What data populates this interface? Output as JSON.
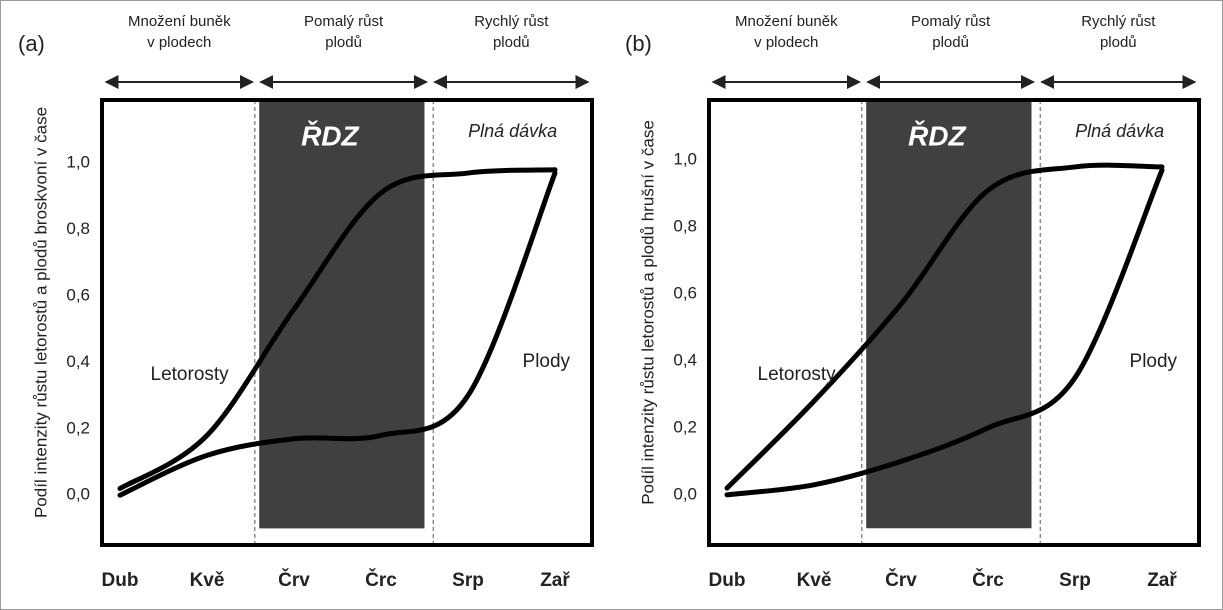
{
  "chart_data": [
    {
      "type": "line",
      "title": "(a)",
      "ylabel": "Podíl intenzity růstu letorostů a plodů broskvoní v čase",
      "categories": [
        "Dub",
        "Kvě",
        "Črv",
        "Črc",
        "Srp",
        "Zař"
      ],
      "phases": [
        [
          "Množení buněk",
          "v plodech"
        ],
        [
          "Pomalý růst",
          "plodů"
        ],
        [
          "Rychlý růst",
          "plodů"
        ]
      ],
      "annotations": [
        "ŘDZ",
        "Plná dávka"
      ],
      "series": [
        {
          "name": "Letorosty",
          "color": "#000000",
          "values": [
            0.02,
            0.18,
            0.56,
            0.91,
            0.97,
            0.98
          ]
        },
        {
          "name": "Plody",
          "color": "#000000",
          "values": [
            0.0,
            0.12,
            0.17,
            0.18,
            0.3,
            0.97
          ]
        }
      ],
      "ylim": [
        -0.15,
        1.19
      ],
      "yticks": [
        {
          "value": 0,
          "label": "0,0"
        },
        {
          "value": 0.2,
          "label": "0,2"
        },
        {
          "value": 0.4,
          "label": "0,4"
        },
        {
          "value": 0.6,
          "label": "0,6"
        },
        {
          "value": 0.8,
          "label": "0,8"
        },
        {
          "value": 1,
          "label": "1,0"
        }
      ]
    },
    {
      "type": "line",
      "title": "(b)",
      "ylabel": "Podíl intenzity růstu letorostů a plodů hrušní v čase",
      "categories": [
        "Dub",
        "Kvě",
        "Črv",
        "Črc",
        "Srp",
        "Zař"
      ],
      "phases": [
        [
          "Množení buněk",
          "v plodech"
        ],
        [
          "Pomalý růst",
          "plodů"
        ],
        [
          "Rychlý růst",
          "plodů"
        ]
      ],
      "annotations": [
        "ŘDZ",
        "Plná dávka"
      ],
      "series": [
        {
          "name": "Letorosty",
          "color": "#000000",
          "values": [
            0.02,
            0.28,
            0.57,
            0.91,
            0.98,
            0.98
          ]
        },
        {
          "name": "Plody",
          "color": "#000000",
          "values": [
            0.0,
            0.03,
            0.1,
            0.2,
            0.35,
            0.97
          ]
        }
      ],
      "ylim": [
        -0.15,
        1.18
      ],
      "yticks": [
        {
          "value": 0,
          "label": "0,0"
        },
        {
          "value": 0.2,
          "label": "0,2"
        },
        {
          "value": 0.4,
          "label": "0,4"
        },
        {
          "value": 0.6,
          "label": "0,6"
        },
        {
          "value": 0.8,
          "label": "0,8"
        },
        {
          "value": 1,
          "label": "1,0"
        }
      ]
    }
  ]
}
